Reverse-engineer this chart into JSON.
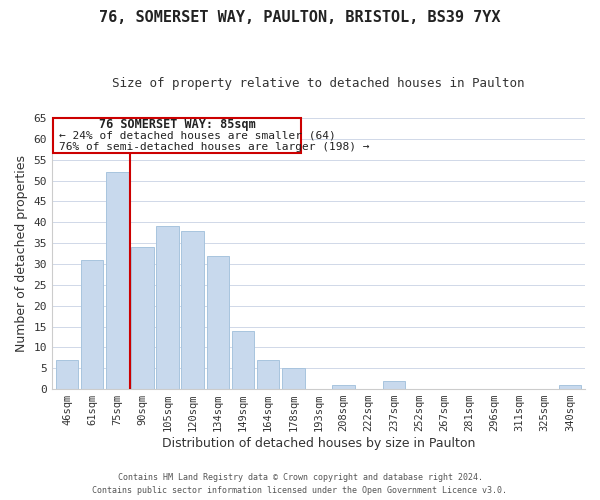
{
  "title": "76, SOMERSET WAY, PAULTON, BRISTOL, BS39 7YX",
  "subtitle": "Size of property relative to detached houses in Paulton",
  "xlabel": "Distribution of detached houses by size in Paulton",
  "ylabel": "Number of detached properties",
  "bar_color": "#c8d9ed",
  "bar_edge_color": "#a8c4de",
  "highlight_color": "#cc0000",
  "categories": [
    "46sqm",
    "61sqm",
    "75sqm",
    "90sqm",
    "105sqm",
    "120sqm",
    "134sqm",
    "149sqm",
    "164sqm",
    "178sqm",
    "193sqm",
    "208sqm",
    "222sqm",
    "237sqm",
    "252sqm",
    "267sqm",
    "281sqm",
    "296sqm",
    "311sqm",
    "325sqm",
    "340sqm"
  ],
  "values": [
    7,
    31,
    52,
    34,
    39,
    38,
    32,
    14,
    7,
    5,
    0,
    1,
    0,
    2,
    0,
    0,
    0,
    0,
    0,
    0,
    1
  ],
  "highlight_index": 2,
  "vline_x": 2.5,
  "ylim": [
    0,
    65
  ],
  "yticks": [
    0,
    5,
    10,
    15,
    20,
    25,
    30,
    35,
    40,
    45,
    50,
    55,
    60,
    65
  ],
  "annotation_title": "76 SOMERSET WAY: 85sqm",
  "annotation_line1": "← 24% of detached houses are smaller (64)",
  "annotation_line2": "76% of semi-detached houses are larger (198) →",
  "footer_line1": "Contains HM Land Registry data © Crown copyright and database right 2024.",
  "footer_line2": "Contains public sector information licensed under the Open Government Licence v3.0.",
  "background_color": "#ffffff",
  "grid_color": "#d0d8e8"
}
